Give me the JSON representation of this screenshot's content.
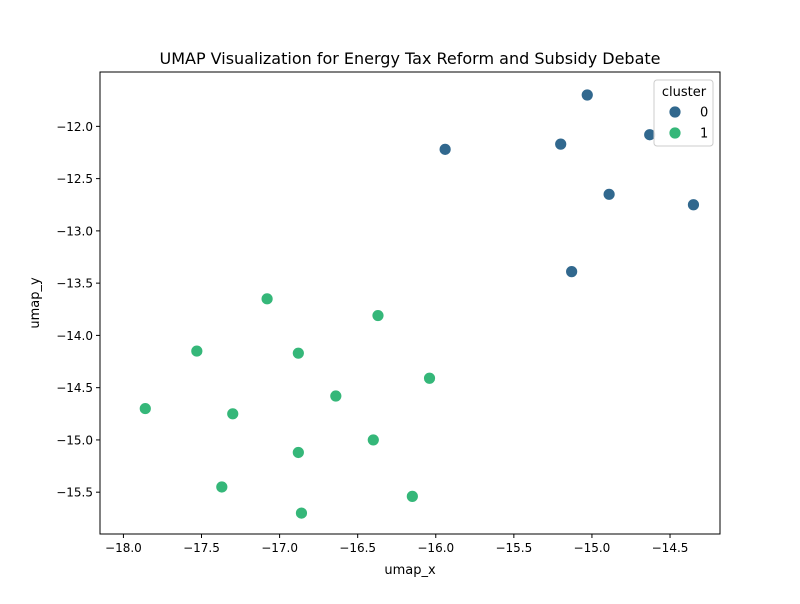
{
  "chart_data": {
    "type": "scatter",
    "title": "UMAP Visualization for Energy Tax Reform and Subsidy Debate",
    "xlabel": "umap_x",
    "ylabel": "umap_y",
    "xlim": [
      -18.15,
      -14.18
    ],
    "ylim": [
      -15.9,
      -11.48
    ],
    "xticks": [
      -18.0,
      -17.5,
      -17.0,
      -16.5,
      -16.0,
      -15.5,
      -15.0,
      -14.5
    ],
    "xtick_labels": [
      "−18.0",
      "−17.5",
      "−17.0",
      "−16.5",
      "−16.0",
      "−15.5",
      "−15.0",
      "−14.5"
    ],
    "yticks": [
      -12.0,
      -12.5,
      -13.0,
      -13.5,
      -14.0,
      -14.5,
      -15.0,
      -15.5
    ],
    "ytick_labels": [
      "−12.0",
      "−12.5",
      "−13.0",
      "−13.5",
      "−14.0",
      "−14.5",
      "−15.0",
      "−15.5"
    ],
    "grid": false,
    "legend": {
      "title": "cluster",
      "placement": "top-right"
    },
    "series": [
      {
        "name": "0",
        "color": "#31688e",
        "points": [
          {
            "x": -15.03,
            "y": -11.7
          },
          {
            "x": -14.63,
            "y": -12.08
          },
          {
            "x": -15.2,
            "y": -12.17
          },
          {
            "x": -15.94,
            "y": -12.22
          },
          {
            "x": -14.89,
            "y": -12.65
          },
          {
            "x": -14.35,
            "y": -12.75
          },
          {
            "x": -15.13,
            "y": -13.39
          }
        ]
      },
      {
        "name": "1",
        "color": "#35b779",
        "points": [
          {
            "x": -17.08,
            "y": -13.65
          },
          {
            "x": -16.37,
            "y": -13.81
          },
          {
            "x": -17.53,
            "y": -14.15
          },
          {
            "x": -16.88,
            "y": -14.17
          },
          {
            "x": -16.04,
            "y": -14.41
          },
          {
            "x": -16.64,
            "y": -14.58
          },
          {
            "x": -17.86,
            "y": -14.7
          },
          {
            "x": -17.3,
            "y": -14.75
          },
          {
            "x": -16.4,
            "y": -15.0
          },
          {
            "x": -16.88,
            "y": -15.12
          },
          {
            "x": -17.37,
            "y": -15.45
          },
          {
            "x": -16.15,
            "y": -15.54
          },
          {
            "x": -16.86,
            "y": -15.7
          }
        ]
      }
    ]
  }
}
